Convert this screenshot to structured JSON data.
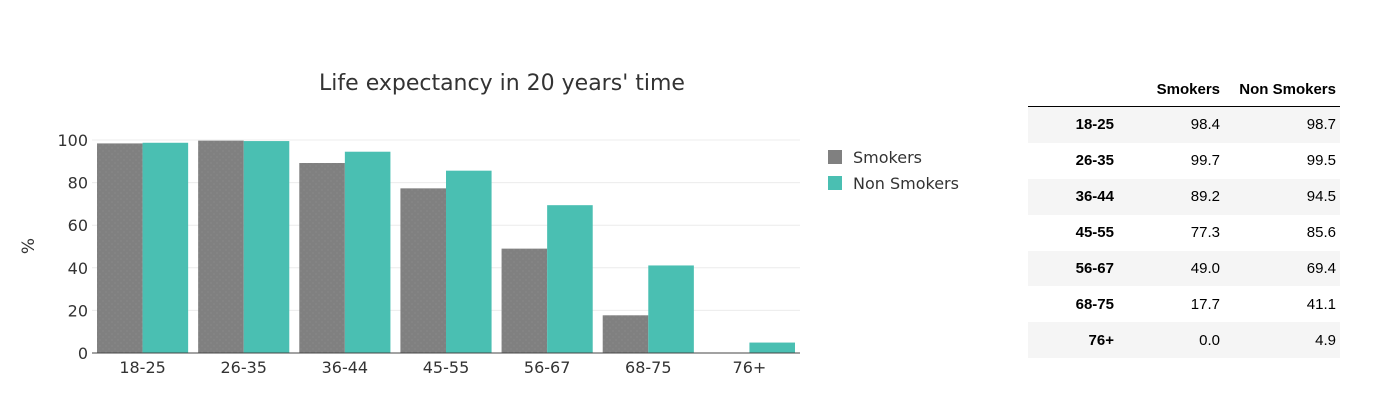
{
  "chart_data": {
    "type": "bar",
    "title": "Life expectancy in 20 years' time",
    "xlabel": "",
    "ylabel": "%",
    "categories": [
      "18-25",
      "26-35",
      "36-44",
      "45-55",
      "56-67",
      "68-75",
      "76+"
    ],
    "series": [
      {
        "name": "Smokers",
        "values": [
          98.4,
          99.7,
          89.2,
          77.3,
          49.0,
          17.7,
          0.0
        ],
        "color": "#808080"
      },
      {
        "name": "Non Smokers",
        "values": [
          98.7,
          99.5,
          94.5,
          85.6,
          69.4,
          41.1,
          4.9
        ],
        "color": "#4abfb2"
      }
    ],
    "ylim": [
      0,
      100
    ],
    "yticks": [
      0,
      20,
      40,
      60,
      80,
      100
    ],
    "grid": true,
    "legend": "right"
  },
  "table": {
    "headers": [
      "",
      "Smokers",
      "Non Smokers"
    ],
    "rows": [
      {
        "label": "18-25",
        "smokers": "98.4",
        "non_smokers": "98.7"
      },
      {
        "label": "26-35",
        "smokers": "99.7",
        "non_smokers": "99.5"
      },
      {
        "label": "36-44",
        "smokers": "89.2",
        "non_smokers": "94.5"
      },
      {
        "label": "45-55",
        "smokers": "77.3",
        "non_smokers": "85.6"
      },
      {
        "label": "56-67",
        "smokers": "49.0",
        "non_smokers": "69.4"
      },
      {
        "label": "68-75",
        "smokers": "17.7",
        "non_smokers": "41.1"
      },
      {
        "label": "76+",
        "smokers": "0.0",
        "non_smokers": "4.9"
      }
    ]
  }
}
